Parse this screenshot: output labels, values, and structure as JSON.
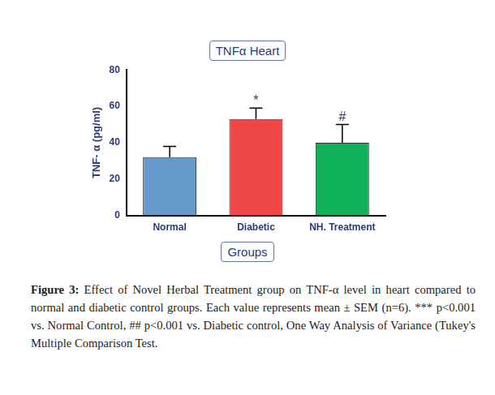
{
  "chart_data": {
    "type": "bar",
    "title": "TNFα Heart",
    "x_label": "Groups",
    "y_label": "TNF- α (pg/ml)",
    "categories": [
      "Normal",
      "Diabetic",
      "NH. Treatment"
    ],
    "values": [
      32,
      53,
      40
    ],
    "errors": [
      6,
      6,
      10
    ],
    "colors": [
      "#6699cc",
      "#f04848",
      "#10b05a"
    ],
    "annotations": [
      {
        "category": "Diabetic",
        "text": "*"
      },
      {
        "category": "NH. Treatment",
        "text": "#"
      }
    ],
    "ylim": [
      0,
      80
    ],
    "yticks": [
      0,
      20,
      40,
      60,
      80
    ],
    "grid": false
  },
  "caption": {
    "label": "Figure 3:",
    "text": "Effect of Novel Herbal Treatment group on TNF-α level in heart compared to normal and diabetic control groups. Each value represents mean ± SEM (n=6). *** p<0.001 vs. Normal Control, ## p<0.001 vs. Diabetic control, One Way Analysis of Variance (Tukey's Multiple Comparison Test."
  }
}
